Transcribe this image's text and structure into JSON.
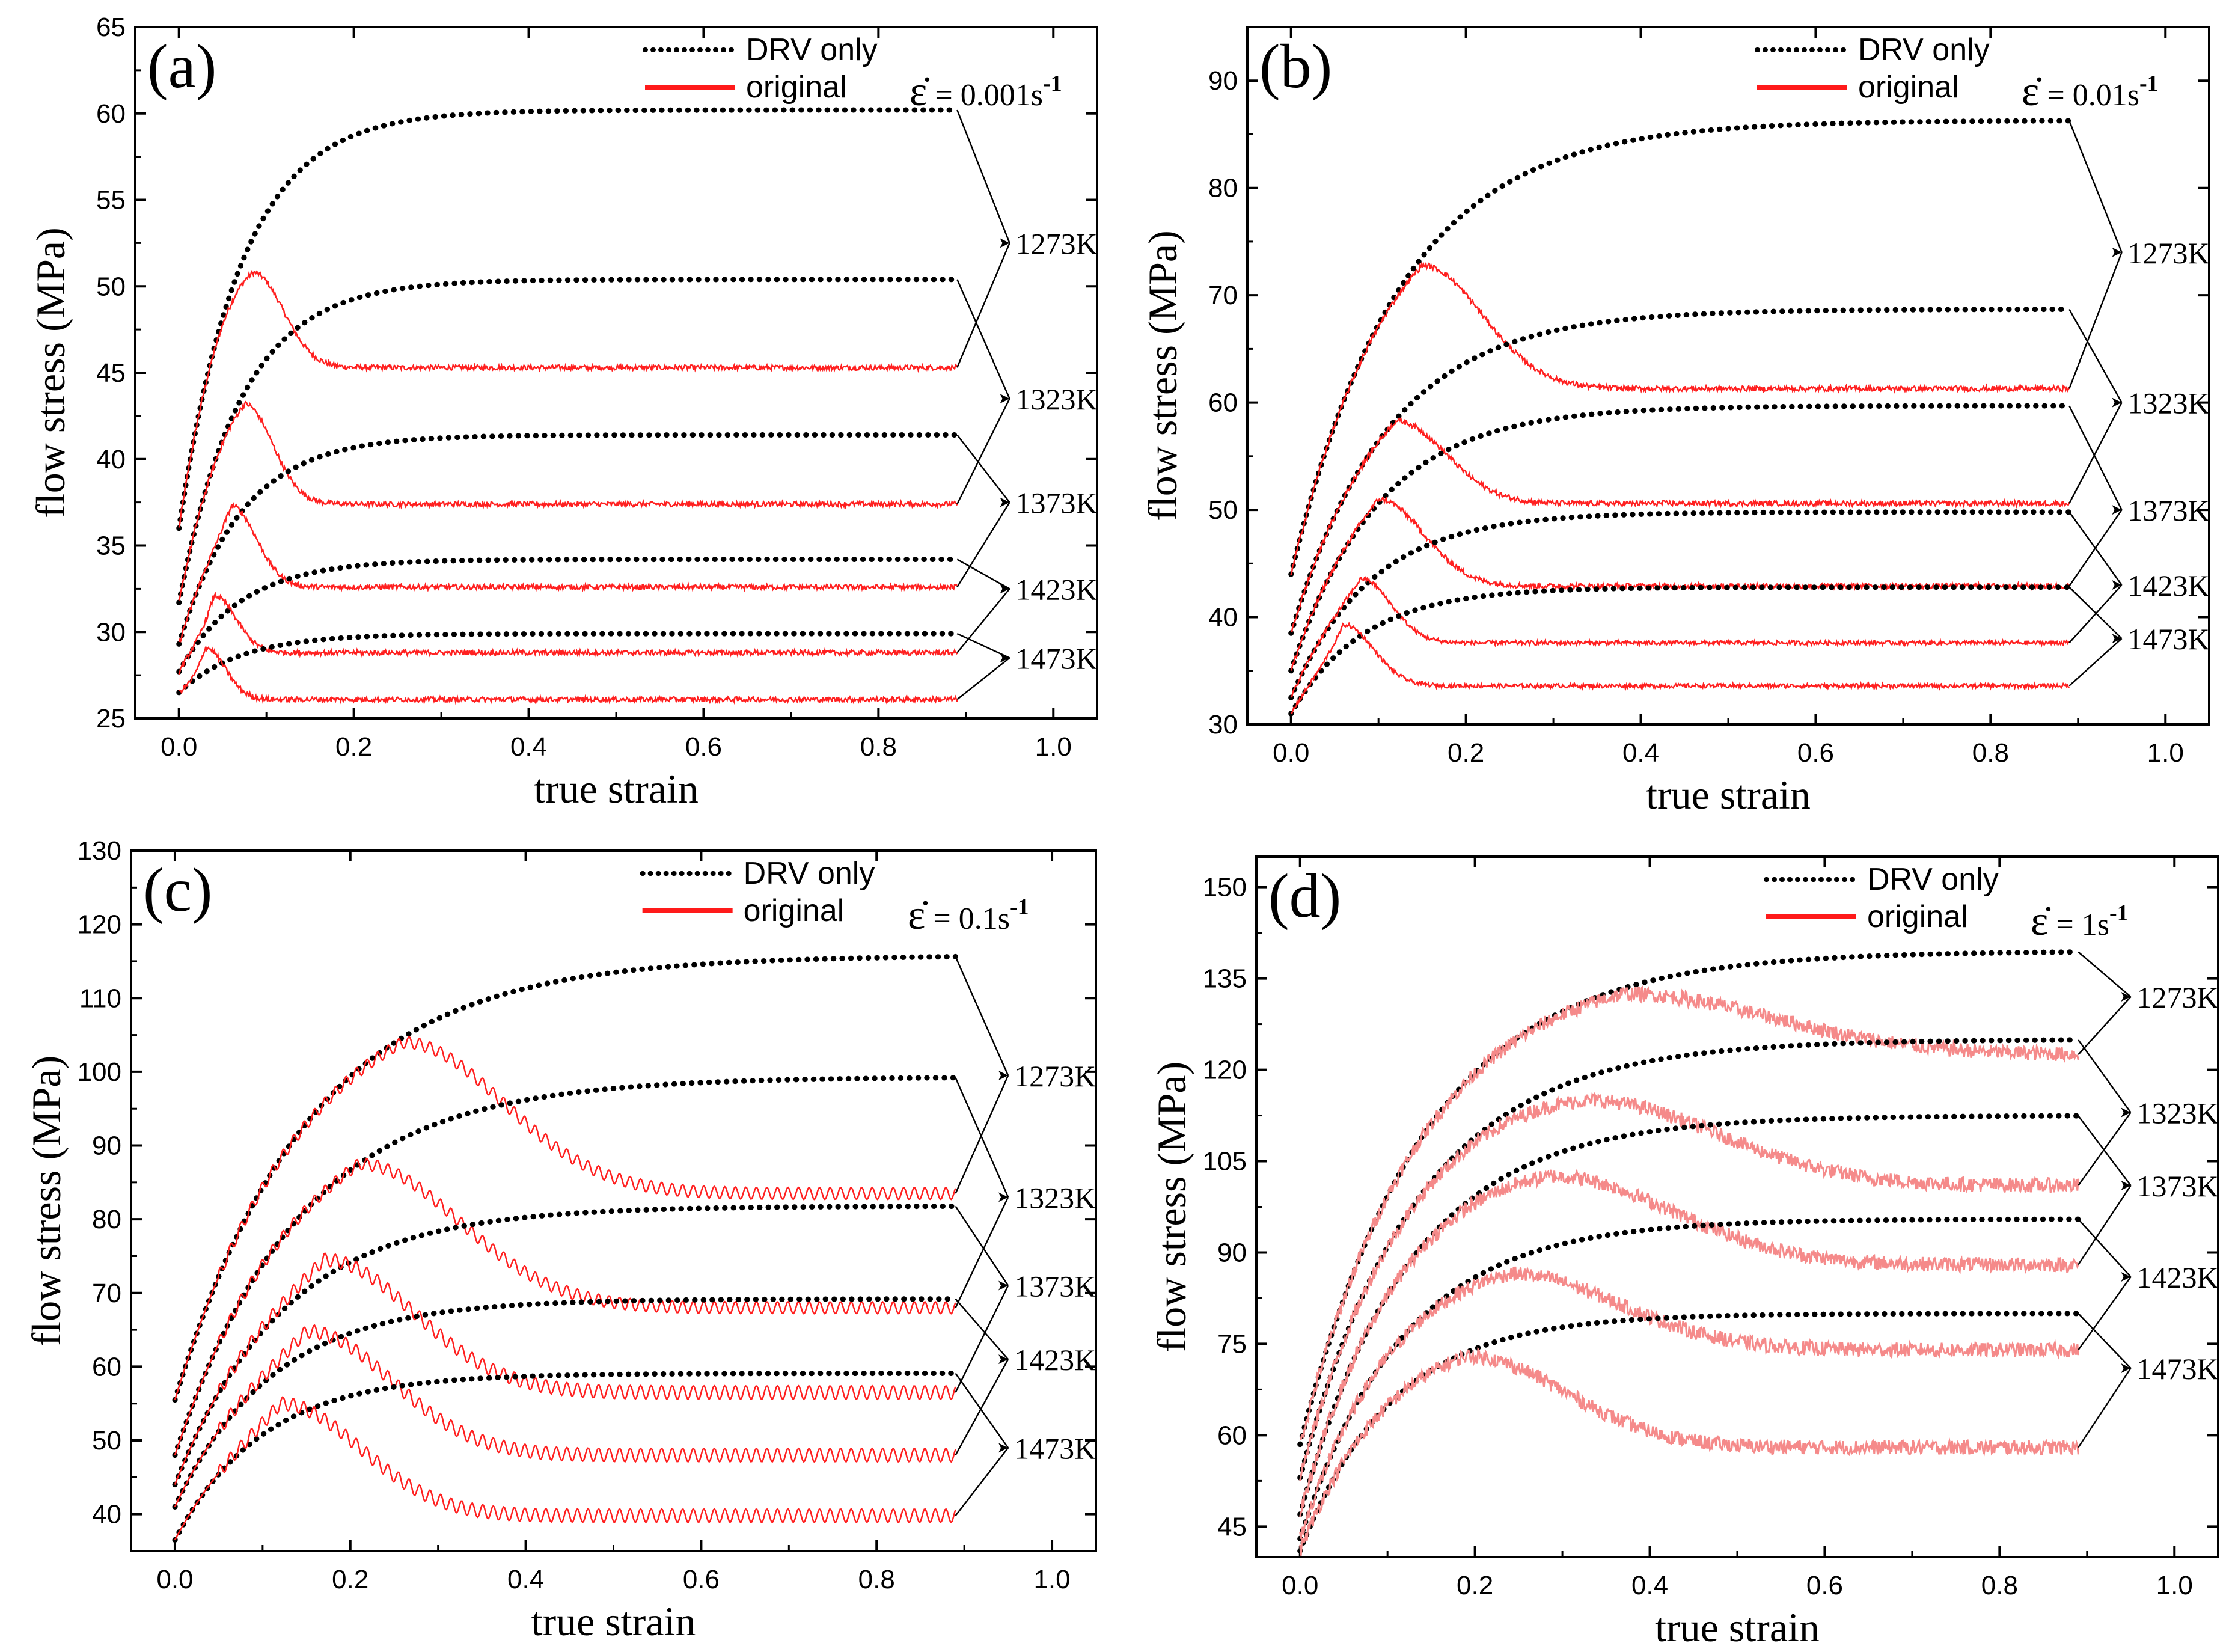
{
  "figure": {
    "strain_rate_prefix": "ε̇ = ",
    "strain_rate_unit": "s",
    "strain_rate_exp": "-1"
  },
  "chart_data": [
    {
      "type": "line",
      "panel_label": "(a)",
      "strain_rate_value": "0.001",
      "xlabel": "true strain",
      "ylabel": "flow stress (MPa)",
      "xlim": [
        -0.05,
        1.05
      ],
      "ylim": [
        25,
        65
      ],
      "xticks": [
        0.0,
        0.2,
        0.4,
        0.6,
        0.8,
        1.0
      ],
      "xtick_labels": [
        "0.0",
        "0.2",
        "0.4",
        "0.6",
        "0.8",
        "1.0"
      ],
      "yticks": [
        25,
        30,
        35,
        40,
        45,
        50,
        55,
        60,
        65
      ],
      "legend": {
        "drv": "DRV only",
        "original": "original",
        "position": "top-right"
      },
      "temperatures": [
        "1273K",
        "1323K",
        "1373K",
        "1423K",
        "1473K"
      ],
      "label_y": [
        52.5,
        43.5,
        37.5,
        32.5,
        28.5
      ],
      "end_x": 0.89,
      "series": [
        {
          "temp": "1273K",
          "drv_start": 36.0,
          "drv_sat": 60.2,
          "drv_k": 14,
          "peak_x": 0.085,
          "peak_y": 50.8,
          "steady": 45.3,
          "decay": 0.03,
          "noise": 0.15,
          "osc_period": 0
        },
        {
          "temp": "1323K",
          "drv_start": 31.7,
          "drv_sat": 50.4,
          "drv_k": 14,
          "peak_x": 0.075,
          "peak_y": 43.2,
          "steady": 37.4,
          "decay": 0.028,
          "noise": 0.15,
          "osc_period": 0
        },
        {
          "temp": "1373K",
          "drv_start": 29.3,
          "drv_sat": 41.4,
          "drv_k": 14,
          "peak_x": 0.06,
          "peak_y": 37.3,
          "steady": 32.6,
          "decay": 0.025,
          "noise": 0.15,
          "osc_period": 0
        },
        {
          "temp": "1423K",
          "drv_start": 27.7,
          "drv_sat": 34.2,
          "drv_k": 14,
          "peak_x": 0.04,
          "peak_y": 32.1,
          "steady": 28.8,
          "decay": 0.022,
          "noise": 0.15,
          "osc_period": 0
        },
        {
          "temp": "1473K",
          "drv_start": 26.5,
          "drv_sat": 29.9,
          "drv_k": 14,
          "peak_x": 0.03,
          "peak_y": 29.1,
          "steady": 26.1,
          "decay": 0.02,
          "noise": 0.15,
          "osc_period": 0
        }
      ]
    },
    {
      "type": "line",
      "panel_label": "(b)",
      "strain_rate_value": "0.01",
      "xlabel": "true strain",
      "ylabel": "flow stress (MPa)",
      "xlim": [
        -0.05,
        1.05
      ],
      "ylim": [
        30,
        95
      ],
      "xticks": [
        0.0,
        0.2,
        0.4,
        0.6,
        0.8,
        1.0
      ],
      "xtick_labels": [
        "0.0",
        "0.2",
        "0.4",
        "0.6",
        "0.8",
        "1.0"
      ],
      "yticks": [
        30,
        40,
        50,
        60,
        70,
        80,
        90
      ],
      "legend": {
        "drv": "DRV only",
        "original": "original",
        "position": "top-right"
      },
      "temperatures": [
        "1273K",
        "1323K",
        "1373K",
        "1423K",
        "1473K"
      ],
      "label_y": [
        74,
        60,
        50,
        43,
        38
      ],
      "end_x": 0.89,
      "series": [
        {
          "temp": "1273K",
          "drv_start": 44.0,
          "drv_sat": 86.3,
          "drv_k": 8,
          "peak_x": 0.15,
          "peak_y": 72.8,
          "steady": 61.3,
          "decay": 0.06,
          "noise": 0.25,
          "osc_period": 0
        },
        {
          "temp": "1323K",
          "drv_start": 38.5,
          "drv_sat": 68.7,
          "drv_k": 9,
          "peak_x": 0.12,
          "peak_y": 58.3,
          "steady": 50.6,
          "decay": 0.05,
          "noise": 0.25,
          "osc_period": 0
        },
        {
          "temp": "1373K",
          "drv_start": 35.0,
          "drv_sat": 59.7,
          "drv_k": 10,
          "peak_x": 0.1,
          "peak_y": 51.0,
          "steady": 42.9,
          "decay": 0.045,
          "noise": 0.25,
          "osc_period": 0
        },
        {
          "temp": "1423K",
          "drv_start": 32.5,
          "drv_sat": 49.8,
          "drv_k": 11,
          "peak_x": 0.08,
          "peak_y": 43.6,
          "steady": 37.6,
          "decay": 0.03,
          "noise": 0.2,
          "osc_period": 0
        },
        {
          "temp": "1473K",
          "drv_start": 31.0,
          "drv_sat": 42.8,
          "drv_k": 12,
          "peak_x": 0.06,
          "peak_y": 39.3,
          "steady": 33.6,
          "decay": 0.03,
          "noise": 0.2,
          "osc_period": 0
        }
      ]
    },
    {
      "type": "line",
      "panel_label": "(c)",
      "strain_rate_value": "0.1",
      "xlabel": "true strain",
      "ylabel": "flow stress (MPa)",
      "xlim": [
        -0.05,
        1.05
      ],
      "ylim": [
        35,
        130
      ],
      "xticks": [
        0.0,
        0.2,
        0.4,
        0.6,
        0.8,
        1.0
      ],
      "xtick_labels": [
        "0.0",
        "0.2",
        "0.4",
        "0.6",
        "0.8",
        "1.0"
      ],
      "yticks": [
        40,
        50,
        60,
        70,
        80,
        90,
        100,
        110,
        120,
        130
      ],
      "legend": {
        "drv": "DRV only",
        "original": "original",
        "position": "top-right"
      },
      "temperatures": [
        "1273K",
        "1323K",
        "1373K",
        "1423K",
        "1473K"
      ],
      "label_y": [
        99.5,
        83,
        71,
        61,
        49
      ],
      "end_x": 0.89,
      "series": [
        {
          "temp": "1273K",
          "drv_start": 55.5,
          "drv_sat": 115.8,
          "drv_k": 6.5,
          "peak_x": 0.26,
          "peak_y": 104.0,
          "steady": 83.5,
          "decay": 0.1,
          "noise": 0.0,
          "osc_period": 0.012,
          "osc_amp": 0.8
        },
        {
          "temp": "1323K",
          "drv_start": 48.0,
          "drv_sat": 99.3,
          "drv_k": 7,
          "peak_x": 0.21,
          "peak_y": 87.5,
          "steady": 68.0,
          "decay": 0.1,
          "noise": 0.0,
          "osc_period": 0.012,
          "osc_amp": 0.8
        },
        {
          "temp": "1373K",
          "drv_start": 44.0,
          "drv_sat": 81.8,
          "drv_k": 8,
          "peak_x": 0.17,
          "peak_y": 74.5,
          "steady": 56.5,
          "decay": 0.09,
          "noise": 0.0,
          "osc_period": 0.012,
          "osc_amp": 0.9
        },
        {
          "temp": "1423K",
          "drv_start": 41.0,
          "drv_sat": 69.2,
          "drv_k": 9,
          "peak_x": 0.15,
          "peak_y": 64.8,
          "steady": 48.0,
          "decay": 0.085,
          "noise": 0.0,
          "osc_period": 0.012,
          "osc_amp": 0.9
        },
        {
          "temp": "1473K",
          "drv_start": 36.5,
          "drv_sat": 59.1,
          "drv_k": 10,
          "peak_x": 0.12,
          "peak_y": 55.0,
          "steady": 39.8,
          "decay": 0.08,
          "noise": 0.0,
          "osc_period": 0.012,
          "osc_amp": 0.9
        }
      ]
    },
    {
      "type": "line",
      "panel_label": "(d)",
      "strain_rate_value": "1",
      "xlabel": "true strain",
      "ylabel": "flow stress (MPa)",
      "xlim": [
        -0.05,
        1.05
      ],
      "ylim": [
        40,
        155
      ],
      "xticks": [
        0.0,
        0.2,
        0.4,
        0.6,
        0.8,
        1.0
      ],
      "xtick_labels": [
        "0.0",
        "0.2",
        "0.4",
        "0.6",
        "0.8",
        "1.0"
      ],
      "yticks": [
        45,
        60,
        75,
        90,
        105,
        120,
        135,
        150
      ],
      "legend": {
        "drv": "DRV only",
        "original": "original",
        "position": "top-right"
      },
      "temperatures": [
        "1273K",
        "1323K",
        "1373K",
        "1423K",
        "1473K"
      ],
      "label_y": [
        132,
        113,
        101,
        86,
        71
      ],
      "end_x": 0.89,
      "series": [
        {
          "temp": "1273K",
          "drv_start": 58.5,
          "drv_sat": 139.5,
          "drv_k": 7,
          "peak_x": 0.37,
          "peak_y": 132.5,
          "steady": 122.5,
          "decay": 0.15,
          "noise": 1.2,
          "osc_period": 0
        },
        {
          "temp": "1323K",
          "drv_start": 53.0,
          "drv_sat": 125.0,
          "drv_k": 7.5,
          "peak_x": 0.33,
          "peak_y": 115.0,
          "steady": 101.0,
          "decay": 0.13,
          "noise": 1.2,
          "osc_period": 0
        },
        {
          "temp": "1373K",
          "drv_start": 47.0,
          "drv_sat": 112.5,
          "drv_k": 8,
          "peak_x": 0.29,
          "peak_y": 102.5,
          "steady": 88.0,
          "decay": 0.12,
          "noise": 1.2,
          "osc_period": 0
        },
        {
          "temp": "1423K",
          "drv_start": 43.0,
          "drv_sat": 95.5,
          "drv_k": 8.5,
          "peak_x": 0.24,
          "peak_y": 86.5,
          "steady": 74.0,
          "decay": 0.11,
          "noise": 1.2,
          "osc_period": 0
        },
        {
          "temp": "1473K",
          "drv_start": 41.0,
          "drv_sat": 80.0,
          "drv_k": 9.5,
          "peak_x": 0.19,
          "peak_y": 73.0,
          "steady": 58.0,
          "decay": 0.1,
          "noise": 1.2,
          "osc_period": 0
        }
      ]
    }
  ]
}
